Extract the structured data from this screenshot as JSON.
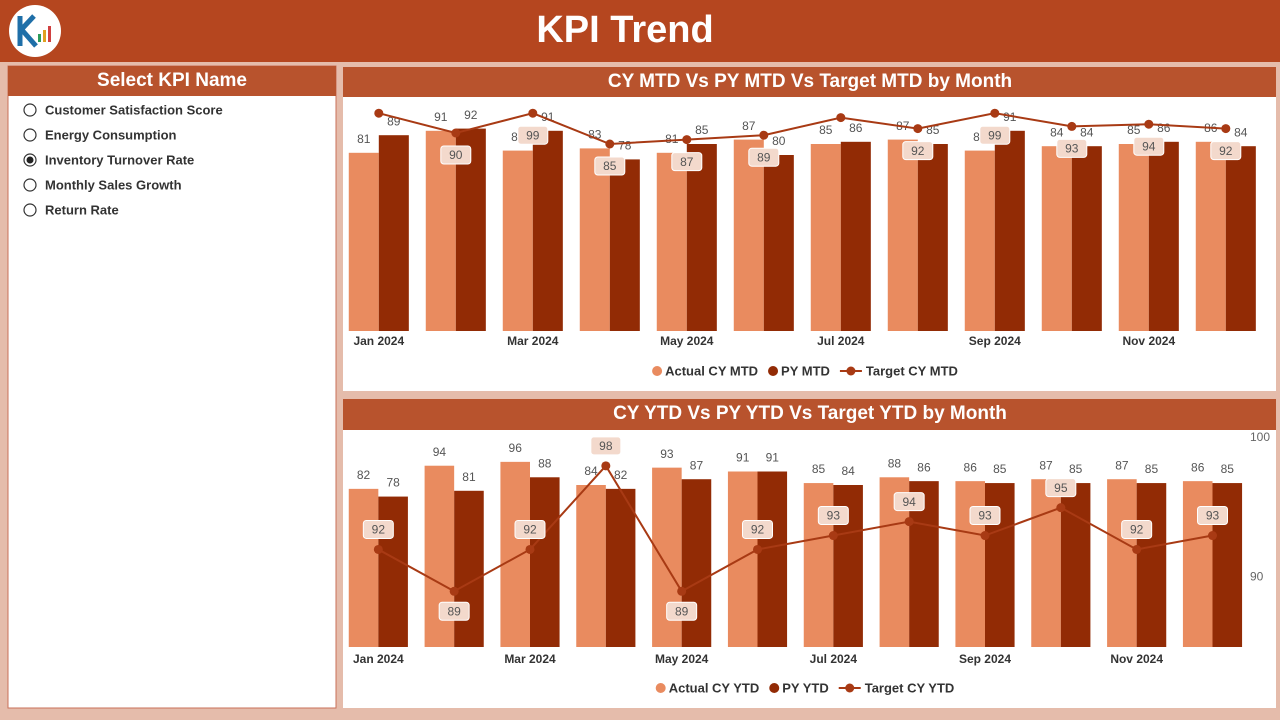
{
  "header": {
    "title": "KPI Trend"
  },
  "slicer": {
    "title": "Select KPI Name",
    "options": [
      "Customer Satisfaction Score",
      "Energy Consumption",
      "Inventory Turnover Rate",
      "Monthly Sales Growth",
      "Return Rate"
    ],
    "selected": 2
  },
  "chart_data": [
    {
      "type": "bar",
      "title": "CY MTD Vs PY MTD Vs Target MTD by Month",
      "categories": [
        "Jan 2024",
        null,
        "Mar 2024",
        null,
        "May 2024",
        null,
        "Jul 2024",
        null,
        "Sep 2024",
        null,
        "Nov 2024",
        null
      ],
      "ylim": [
        0,
        105
      ],
      "series": [
        {
          "name": "Actual CY MTD",
          "type": "bar",
          "color": "#e98b5f",
          "values": [
            81,
            91,
            82,
            83,
            81,
            87,
            85,
            87,
            82,
            84,
            85,
            86
          ]
        },
        {
          "name": "PY MTD",
          "type": "bar",
          "color": "#922b05",
          "values": [
            89,
            92,
            91,
            78,
            85,
            80,
            86,
            85,
            91,
            84,
            86,
            84
          ]
        },
        {
          "name": "Target CY MTD",
          "type": "line",
          "color": "#a83a14",
          "values": [
            99,
            90,
            99,
            85,
            87,
            89,
            97,
            92,
            99,
            93,
            94,
            92
          ],
          "value_labels": [
            null,
            "90",
            "99",
            "85",
            "87",
            "89",
            null,
            "92",
            "99",
            "93",
            "94",
            "92"
          ]
        }
      ]
    },
    {
      "type": "bar",
      "title": "CY YTD Vs PY YTD Vs Target YTD by Month",
      "categories": [
        "Jan 2024",
        null,
        "Mar 2024",
        null,
        "May 2024",
        null,
        "Jul 2024",
        null,
        "Sep 2024",
        null,
        "Nov 2024",
        null
      ],
      "ylim": [
        0,
        112
      ],
      "y2lim": [
        85,
        100.5
      ],
      "y2ticks": [
        90,
        100
      ],
      "series": [
        {
          "name": "Actual CY YTD",
          "type": "bar",
          "color": "#e98b5f",
          "values": [
            82,
            94,
            96,
            84,
            93,
            91,
            85,
            88,
            86,
            87,
            87,
            86
          ]
        },
        {
          "name": "PY YTD",
          "type": "bar",
          "color": "#922b05",
          "values": [
            78,
            81,
            88,
            82,
            87,
            91,
            84,
            86,
            85,
            85,
            85,
            85
          ]
        },
        {
          "name": "Target CY YTD",
          "type": "line",
          "axis": "y2",
          "color": "#a83a14",
          "values": [
            92,
            89,
            92,
            98,
            89,
            92,
            93,
            94,
            93,
            95,
            92,
            93
          ]
        }
      ]
    }
  ]
}
